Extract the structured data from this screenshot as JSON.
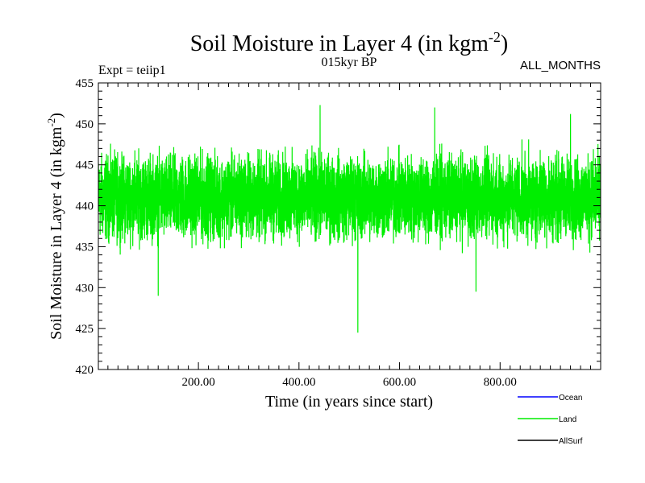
{
  "header": {
    "title_main": "Soil Moisture in Layer 4 (in kgm",
    "title_sup": "-2",
    "title_close": ")",
    "left_label": "Expt = teiip1",
    "center_label": "015kyr BP",
    "right_label": "ALL_MONTHS"
  },
  "chart_data": {
    "type": "line",
    "xlabel": "Time (in years since start)",
    "ylabel_main": "Soil Moisture in Layer 4 (in kgm",
    "ylabel_sup": "-2",
    "ylabel_close": ")",
    "xlim": [
      1,
      1000
    ],
    "ylim": [
      420,
      455
    ],
    "x_ticks": [
      200,
      400,
      600,
      800
    ],
    "x_tick_labels": [
      "200.00",
      "400.00",
      "600.00",
      "800.00"
    ],
    "y_ticks": [
      420,
      425,
      430,
      435,
      440,
      445,
      450,
      455
    ],
    "y_tick_labels": [
      "420",
      "425",
      "430",
      "435",
      "440",
      "445",
      "450",
      "455"
    ],
    "grid": false,
    "legend_position": "bottom-right, below plot",
    "series": [
      {
        "name": "Ocean",
        "color": "#0000ff",
        "values": []
      },
      {
        "name": "Land",
        "color": "#00ee00",
        "mean": 441,
        "typical_range": [
          434,
          448
        ],
        "min": 424.5,
        "max": 452.3,
        "notable_points": [
          {
            "x": 120,
            "y": 429
          },
          {
            "x": 442,
            "y": 452.3
          },
          {
            "x": 517,
            "y": 424.5
          },
          {
            "x": 670,
            "y": 452
          },
          {
            "x": 752,
            "y": 429.5
          },
          {
            "x": 940,
            "y": 451.2
          }
        ],
        "values": []
      },
      {
        "name": "AllSurf",
        "color": "#000000",
        "values": []
      }
    ]
  }
}
